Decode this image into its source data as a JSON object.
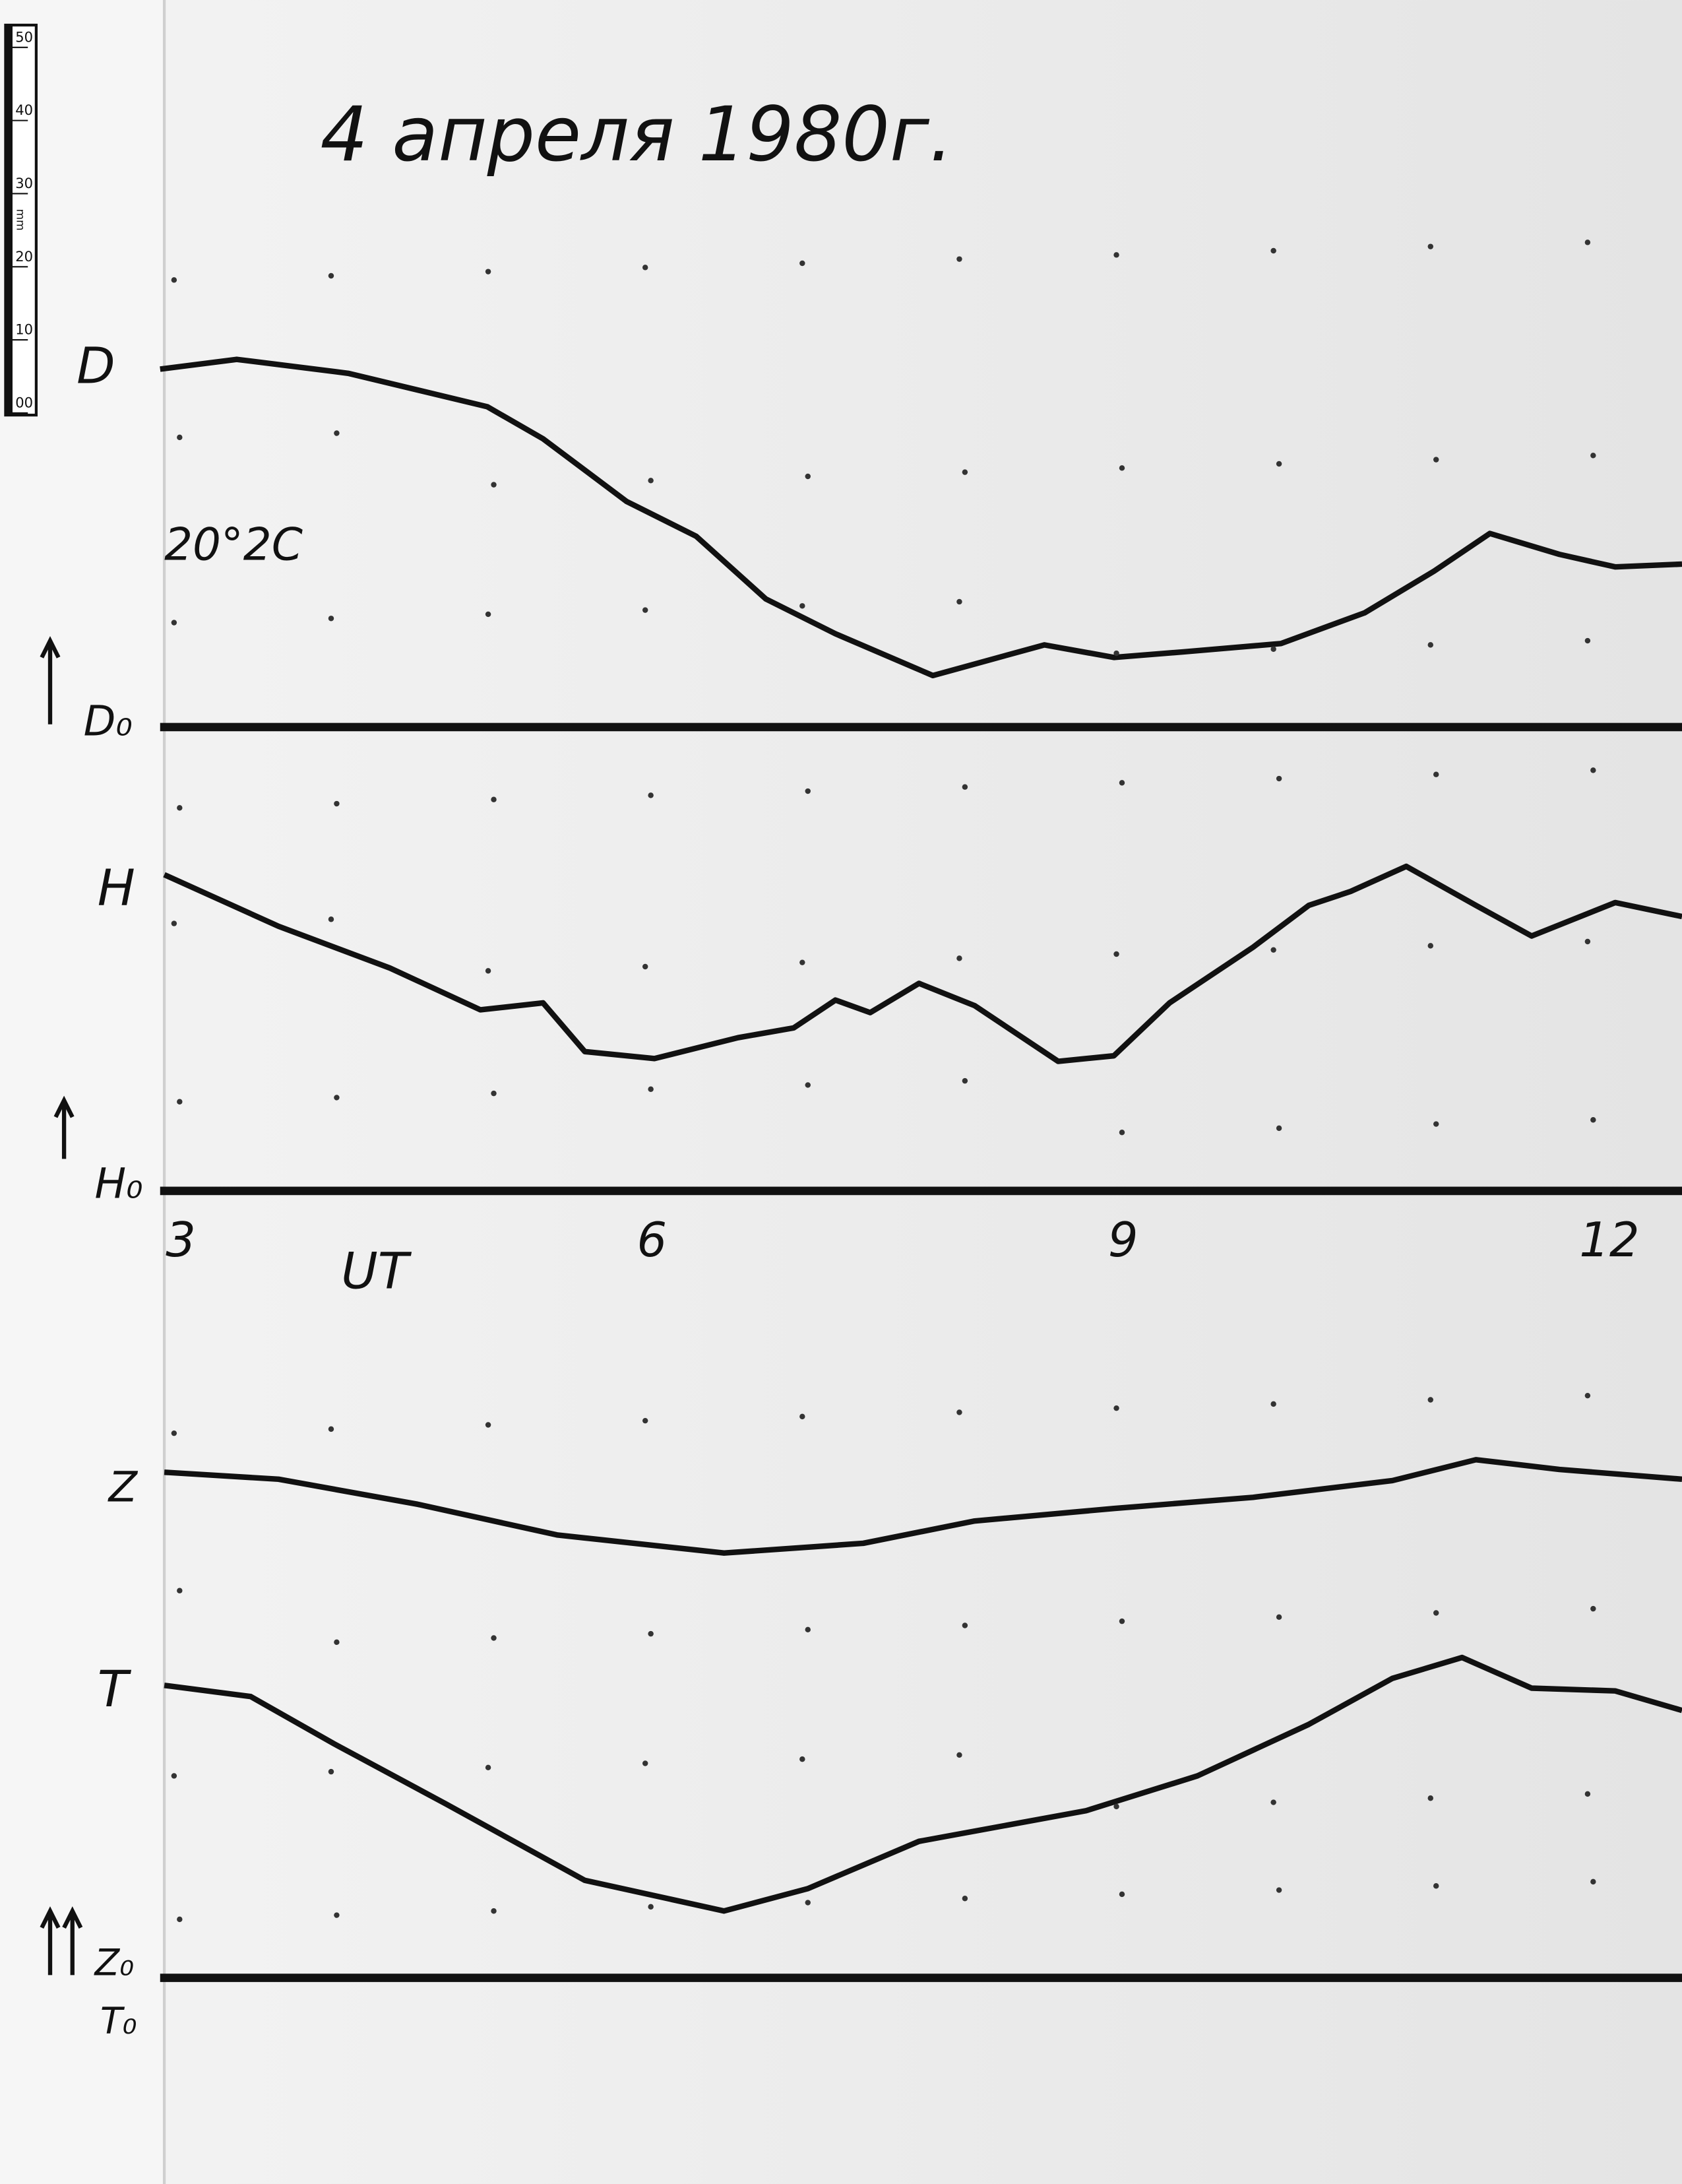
{
  "title": "4 апреля 1980г.",
  "temperature": "20°2C",
  "ruler": {
    "unit": "mm",
    "labels": [
      "50",
      "40",
      "30",
      "20",
      "10",
      "00"
    ]
  },
  "channels": {
    "D": "D",
    "D0": "D₀",
    "H": "H",
    "H0": "H₀",
    "Z": "Z",
    "T": "T",
    "Z0": "Z₀",
    "T0": "T₀"
  },
  "axis": {
    "label": "UT",
    "ticks": [
      3,
      6,
      9,
      12
    ]
  }
}
